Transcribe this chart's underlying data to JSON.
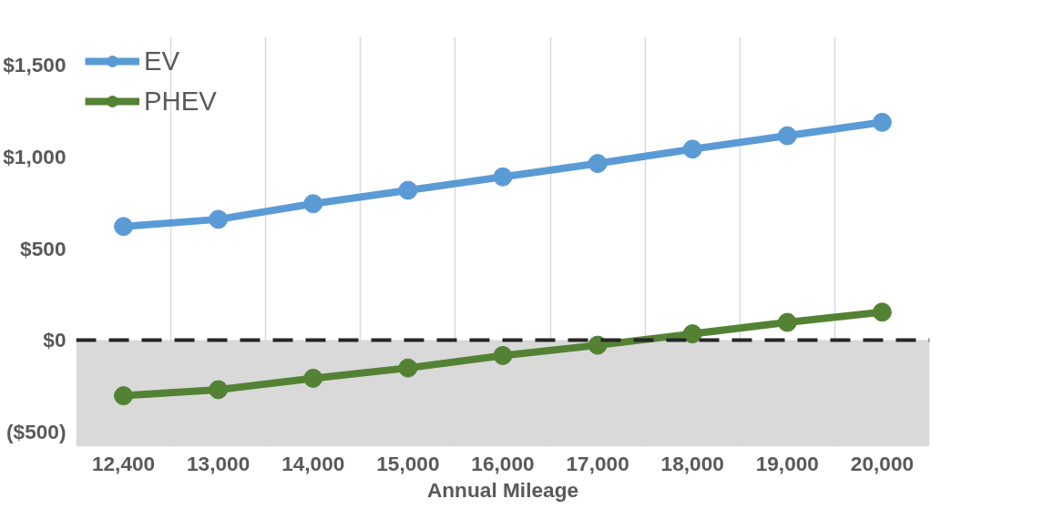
{
  "chart_data": {
    "type": "line",
    "xlabel": "Annual Mileage",
    "categories": [
      "12,400",
      "13,000",
      "14,000",
      "15,000",
      "16,000",
      "17,000",
      "18,000",
      "19,000",
      "20,000"
    ],
    "series": [
      {
        "name": "EV",
        "color": "#5b9bd5",
        "values": [
          618,
          657,
          742,
          815,
          888,
          961,
          1039,
          1112,
          1185
        ]
      },
      {
        "name": "PHEV",
        "color": "#548235",
        "values": [
          -303,
          -270,
          -208,
          -152,
          -84,
          -28,
          34,
          96,
          152
        ]
      }
    ],
    "ylim": [
      -580,
      1650
    ],
    "yticks": [
      {
        "value": 1500,
        "label": "$1,500"
      },
      {
        "value": 1000,
        "label": "$1,000"
      },
      {
        "value": 500,
        "label": "$500"
      },
      {
        "value": 0,
        "label": "$0"
      },
      {
        "value": -500,
        "label": "($500)"
      }
    ],
    "ref_lines": [
      {
        "axis": "y",
        "value": 0,
        "color": "#262626",
        "line_style": "dashed"
      }
    ],
    "bands": [
      {
        "axis": "y",
        "from": 0,
        "to": -580,
        "color": "#d9d9d9"
      }
    ],
    "grid": "x",
    "legend": "top left",
    "marker": "circle",
    "line_style": "solid"
  }
}
